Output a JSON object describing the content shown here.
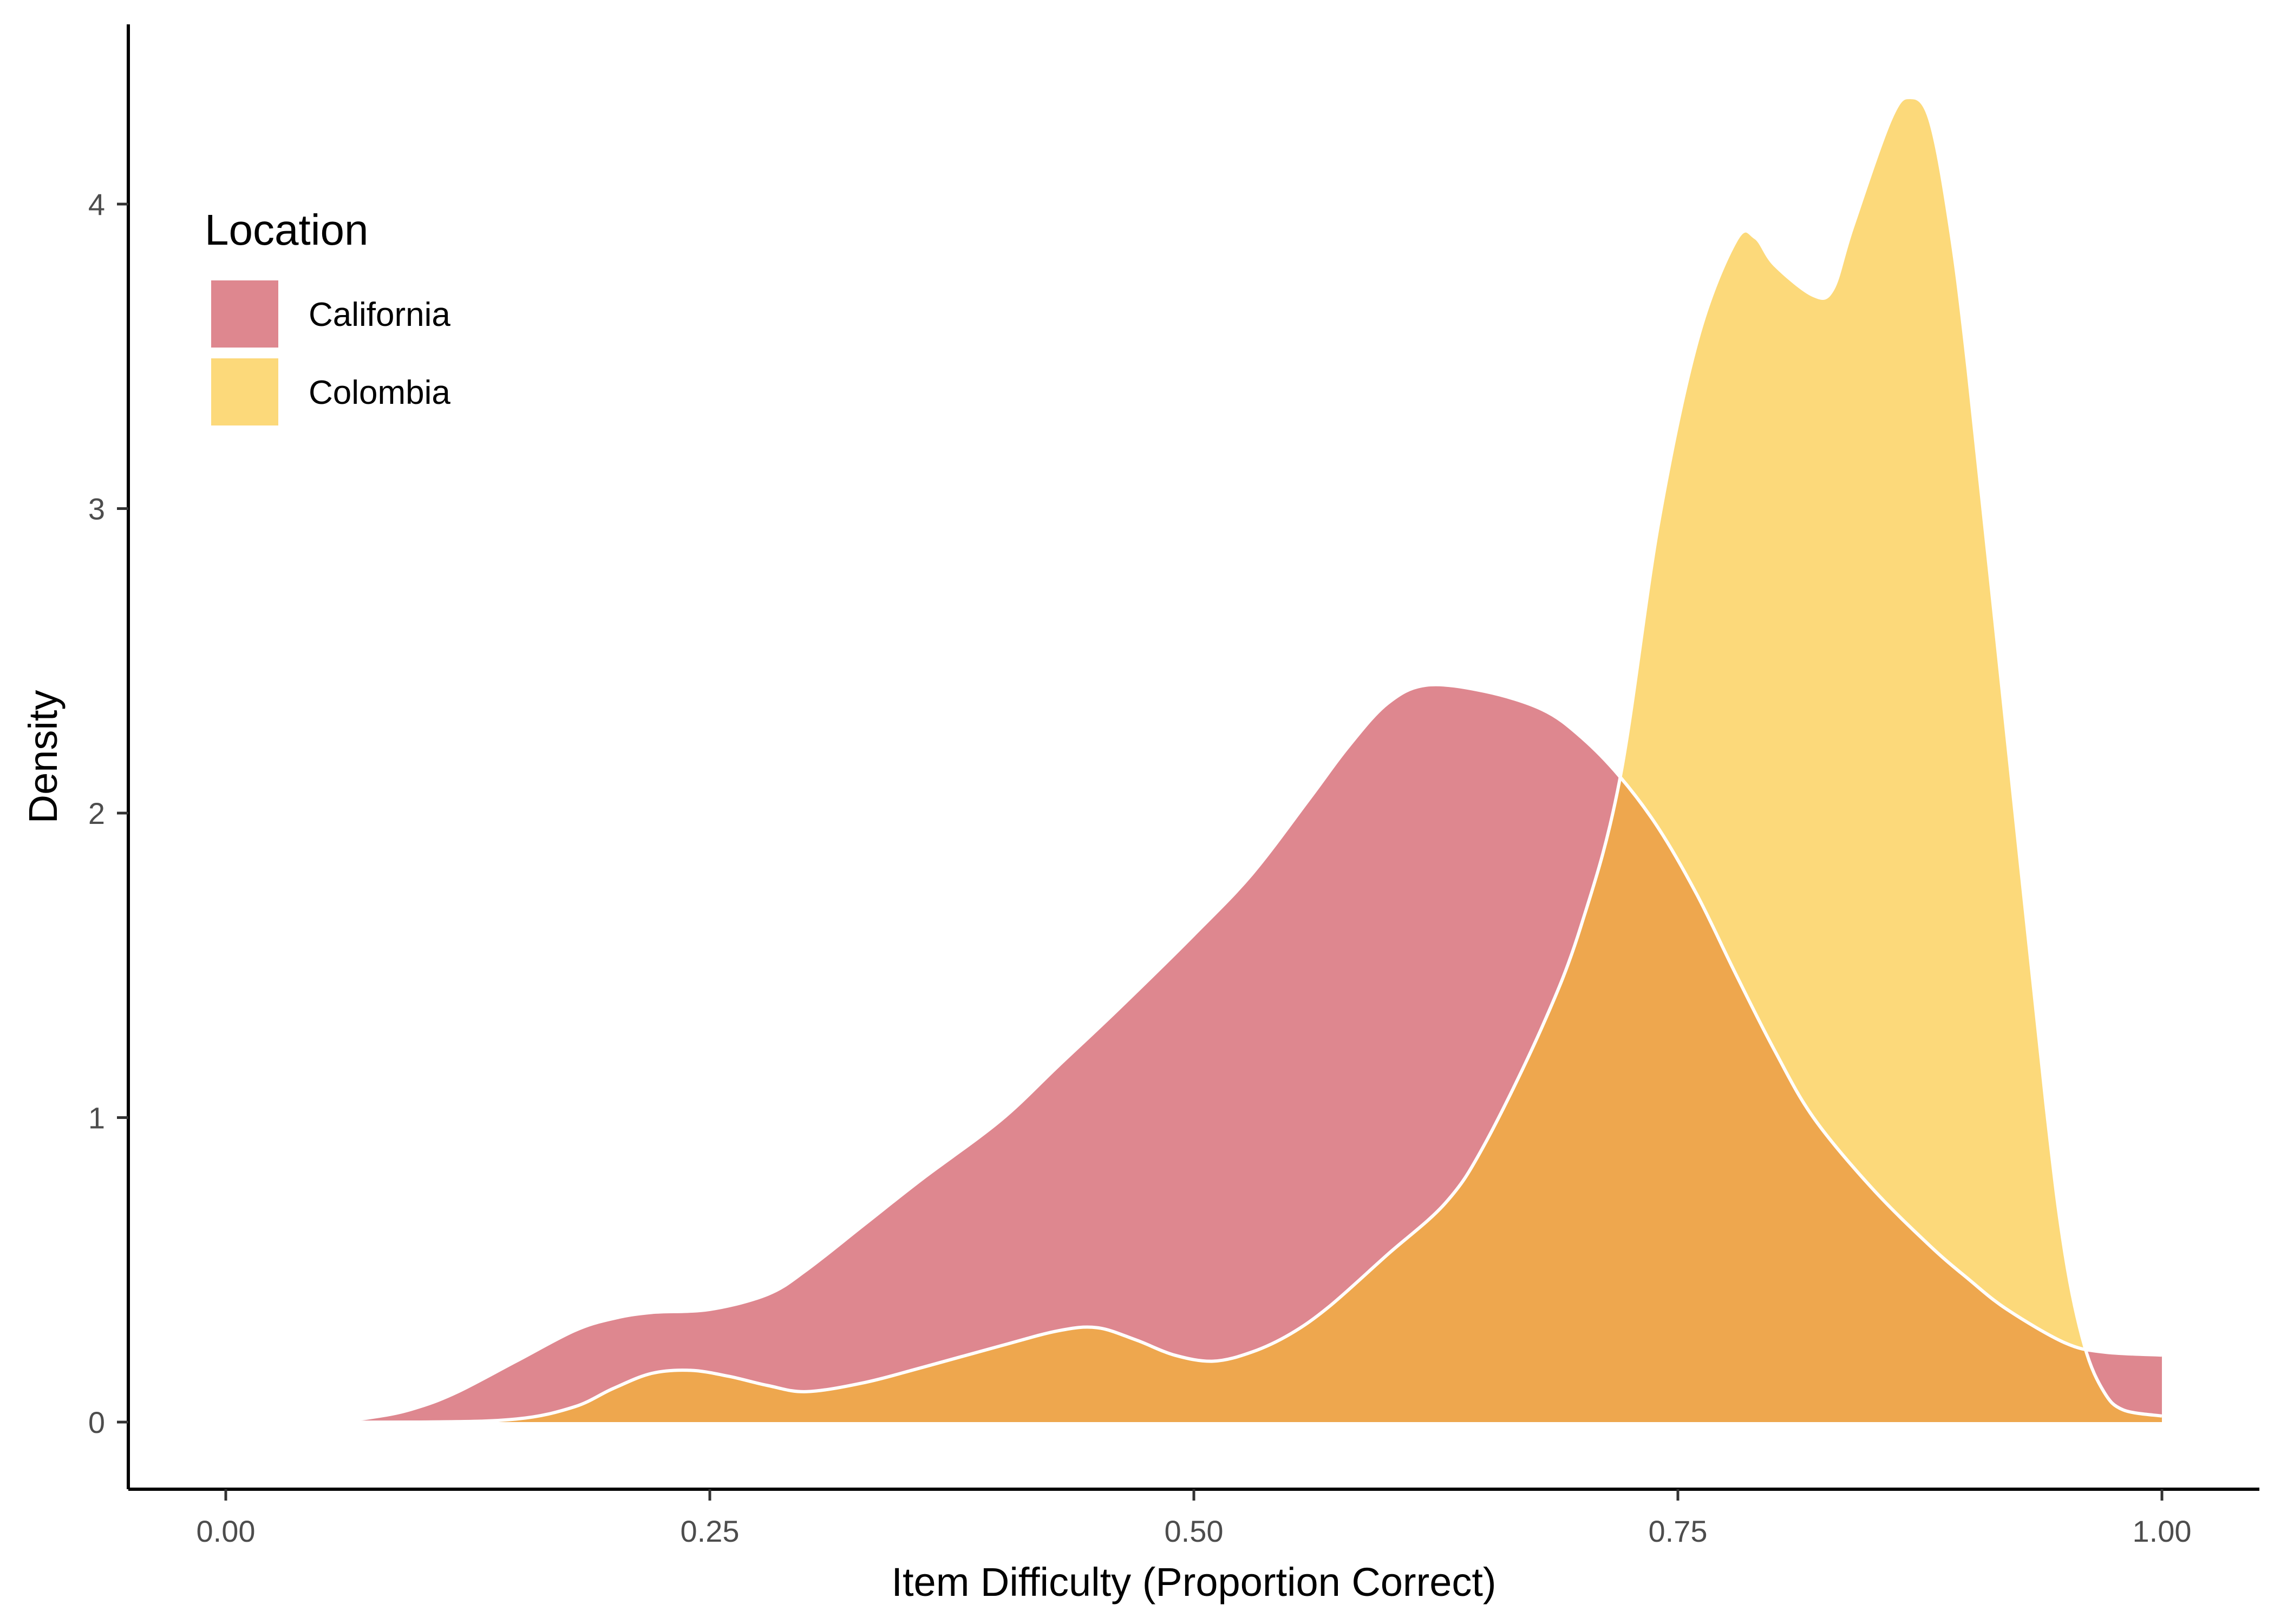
{
  "chart_data": {
    "type": "area",
    "chart_subtype": "density",
    "title": "",
    "xlabel": "Item Difficulty (Proportion Correct)",
    "ylabel": "Density",
    "xlim": [
      -0.05,
      1.05
    ],
    "ylim": [
      -0.22,
      4.55
    ],
    "x_ticks": [
      0.0,
      0.25,
      0.5,
      0.75,
      1.0
    ],
    "x_tick_labels": [
      "0.00",
      "0.25",
      "0.50",
      "0.75",
      "1.00"
    ],
    "y_ticks": [
      0,
      1,
      2,
      3,
      4
    ],
    "y_tick_labels": [
      "0",
      "1",
      "2",
      "3",
      "4"
    ],
    "grid": false,
    "legend": {
      "title": "Location",
      "position": "top-left",
      "entries": [
        "California",
        "Colombia"
      ]
    },
    "series": [
      {
        "name": "California",
        "color": "#DE878F",
        "x": [
          0.0,
          0.05,
          0.08,
          0.1,
          0.12,
          0.15,
          0.18,
          0.2,
          0.22,
          0.25,
          0.28,
          0.3,
          0.33,
          0.36,
          0.4,
          0.43,
          0.46,
          0.5,
          0.53,
          0.56,
          0.58,
          0.6,
          0.62,
          0.65,
          0.68,
          0.7,
          0.72,
          0.74,
          0.76,
          0.78,
          0.8,
          0.82,
          0.85,
          0.88,
          0.9,
          0.92,
          0.95,
          0.97,
          1.0
        ],
        "y": [
          0.01,
          0.0,
          0.02,
          0.05,
          0.1,
          0.2,
          0.3,
          0.34,
          0.36,
          0.37,
          0.42,
          0.5,
          0.65,
          0.8,
          0.99,
          1.17,
          1.35,
          1.6,
          1.8,
          2.05,
          2.22,
          2.36,
          2.42,
          2.4,
          2.34,
          2.25,
          2.12,
          1.95,
          1.73,
          1.47,
          1.22,
          1.0,
          0.77,
          0.58,
          0.47,
          0.37,
          0.26,
          0.23,
          0.22
        ]
      },
      {
        "name": "Colombia",
        "color": "#FCD97A",
        "x": [
          0.0,
          0.1,
          0.15,
          0.18,
          0.2,
          0.22,
          0.24,
          0.26,
          0.28,
          0.3,
          0.33,
          0.36,
          0.4,
          0.43,
          0.45,
          0.47,
          0.49,
          0.51,
          0.53,
          0.55,
          0.57,
          0.6,
          0.63,
          0.65,
          0.68,
          0.7,
          0.72,
          0.74,
          0.76,
          0.78,
          0.79,
          0.8,
          0.82,
          0.83,
          0.84,
          0.86,
          0.87,
          0.88,
          0.89,
          0.9,
          0.92,
          0.94,
          0.95,
          0.96,
          0.97,
          0.98,
          1.0
        ],
        "y": [
          0.0,
          0.0,
          0.01,
          0.05,
          0.11,
          0.16,
          0.17,
          0.15,
          0.12,
          0.1,
          0.13,
          0.18,
          0.25,
          0.3,
          0.31,
          0.27,
          0.22,
          0.2,
          0.23,
          0.29,
          0.38,
          0.55,
          0.72,
          0.91,
          1.3,
          1.63,
          2.11,
          2.95,
          3.55,
          3.88,
          3.89,
          3.8,
          3.7,
          3.72,
          3.92,
          4.28,
          4.35,
          4.28,
          3.95,
          3.45,
          2.25,
          1.05,
          0.55,
          0.25,
          0.1,
          0.04,
          0.02
        ]
      }
    ],
    "overlap_color": "#EEA74E"
  }
}
